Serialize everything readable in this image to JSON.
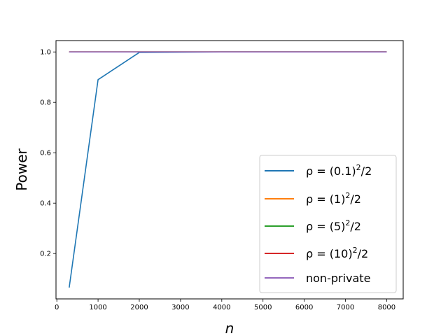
{
  "chart_data": {
    "type": "line",
    "title": "",
    "xlabel": "n",
    "ylabel": "Power",
    "xlim": [
      -20,
      8400
    ],
    "ylim": [
      0.02,
      1.045
    ],
    "xticks": [
      0,
      1000,
      2000,
      3000,
      4000,
      5000,
      6000,
      7000,
      8000
    ],
    "xtick_labels": [
      "0",
      "1000",
      "2000",
      "3000",
      "4000",
      "5000",
      "6000",
      "7000",
      "8000"
    ],
    "yticks": [
      0.2,
      0.4,
      0.6,
      0.8,
      1.0
    ],
    "ytick_labels": [
      "0.2",
      "0.4",
      "0.6",
      "0.8",
      "1.0"
    ],
    "grid": false,
    "legend_position": "lower-right",
    "x": [
      300,
      1000,
      2000,
      4000,
      8000
    ],
    "series": [
      {
        "name": "ρ = (0.1)²/2",
        "label_base": "ρ = (0.1)",
        "label_sup": "2",
        "label_tail": "/2",
        "color": "#1f77b4",
        "values": [
          0.065,
          0.89,
          0.998,
          1.0,
          1.0
        ]
      },
      {
        "name": "ρ = (1)²/2",
        "label_base": "ρ = (1)",
        "label_sup": "2",
        "label_tail": "/2",
        "color": "#ff7f0e",
        "values": [
          1.0,
          1.0,
          1.0,
          1.0,
          1.0
        ]
      },
      {
        "name": "ρ = (5)²/2",
        "label_base": "ρ = (5)",
        "label_sup": "2",
        "label_tail": "/2",
        "color": "#2ca02c",
        "values": [
          1.0,
          1.0,
          1.0,
          1.0,
          1.0
        ]
      },
      {
        "name": "ρ = (10)²/2",
        "label_base": "ρ = (10)",
        "label_sup": "2",
        "label_tail": "/2",
        "color": "#d62728",
        "values": [
          1.0,
          1.0,
          1.0,
          1.0,
          1.0
        ]
      },
      {
        "name": "non-private",
        "label_base": "non-private",
        "label_sup": "",
        "label_tail": "",
        "color": "#9467bd",
        "values": [
          1.0,
          1.0,
          1.0,
          1.0,
          1.0
        ]
      }
    ]
  }
}
